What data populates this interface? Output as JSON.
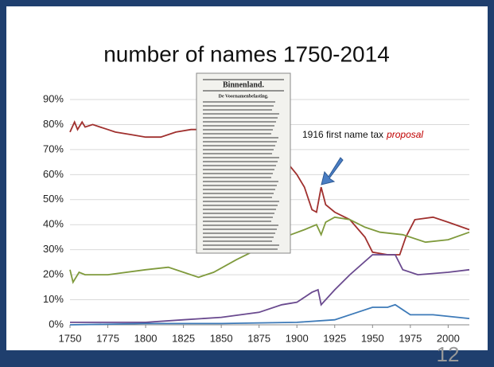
{
  "chart_data": {
    "type": "line",
    "title": "number of names 1750-2014",
    "annotation": {
      "text": "1916 first name tax",
      "emphasis": "proposal"
    },
    "clipping": {
      "heading": "Binnenland.",
      "subheading": "De Voornamenbelasting."
    },
    "page_number": "12",
    "xlim": [
      1750,
      2014
    ],
    "xticks": [
      1750,
      1775,
      1800,
      1825,
      1850,
      1875,
      1900,
      1925,
      1950,
      1975,
      2000
    ],
    "ylim": [
      0,
      90
    ],
    "yticks": [
      {
        "value": 0,
        "label": "0%"
      },
      {
        "value": 10,
        "label": "10%"
      },
      {
        "value": 20,
        "label": "20%"
      },
      {
        "value": 30,
        "label": "30%"
      },
      {
        "value": 40,
        "label": "40%"
      },
      {
        "value": 50,
        "label": "50%"
      },
      {
        "value": 60,
        "label": "60%"
      },
      {
        "value": 70,
        "label": "70%"
      },
      {
        "value": 80,
        "label": "80%"
      },
      {
        "value": 90,
        "label": "90%"
      }
    ],
    "grid": true,
    "series": [
      {
        "color": "#a0302e",
        "x": [
          1750,
          1753,
          1755,
          1758,
          1760,
          1765,
          1770,
          1775,
          1780,
          1790,
          1800,
          1810,
          1820,
          1830,
          1840,
          1860,
          1880,
          1896,
          1900,
          1905,
          1910,
          1913,
          1916,
          1919,
          1925,
          1935,
          1945,
          1950,
          1960,
          1968,
          1972,
          1978,
          1990,
          2000,
          2014
        ],
        "values": [
          77,
          81,
          78,
          81,
          79,
          80,
          79,
          78,
          77,
          76,
          75,
          75,
          77,
          78,
          78,
          77,
          75,
          63,
          60,
          55,
          46,
          45,
          55,
          48,
          45,
          42,
          35,
          29,
          28,
          28,
          35,
          42,
          43,
          41,
          38
        ]
      },
      {
        "color": "#7f9a3c",
        "x": [
          1750,
          1752,
          1756,
          1760,
          1775,
          1800,
          1815,
          1825,
          1835,
          1845,
          1860,
          1880,
          1896,
          1905,
          1913,
          1916,
          1919,
          1925,
          1935,
          1945,
          1955,
          1970,
          1985,
          2000,
          2014
        ],
        "values": [
          22,
          17,
          21,
          20,
          20,
          22,
          23,
          21,
          19,
          21,
          26,
          32,
          36,
          38,
          40,
          36,
          41,
          43,
          42,
          39,
          37,
          36,
          33,
          34,
          37
        ]
      },
      {
        "color": "#6a4a8f",
        "x": [
          1750,
          1775,
          1800,
          1825,
          1850,
          1875,
          1890,
          1900,
          1910,
          1914,
          1916,
          1925,
          1935,
          1950,
          1965,
          1970,
          1980,
          2000,
          2014
        ],
        "values": [
          1,
          1,
          1,
          2,
          3,
          5,
          8,
          9,
          13,
          14,
          8,
          14,
          20,
          28,
          28,
          22,
          20,
          21,
          22
        ]
      },
      {
        "color": "#3d7ab8",
        "x": [
          1750,
          1800,
          1850,
          1900,
          1925,
          1940,
          1950,
          1960,
          1965,
          1975,
          1990,
          2014
        ],
        "values": [
          0,
          0.5,
          0.5,
          1,
          2,
          5,
          7,
          7,
          8,
          4,
          4,
          2.5
        ]
      }
    ]
  }
}
